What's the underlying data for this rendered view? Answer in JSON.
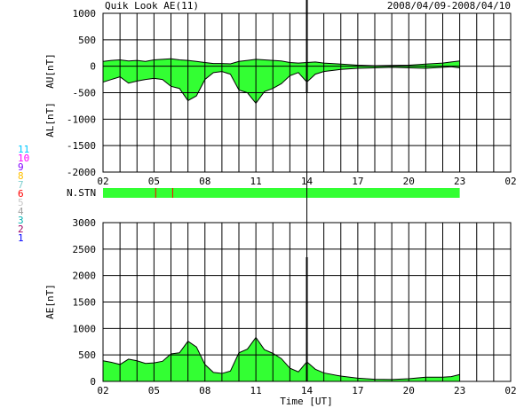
{
  "header": {
    "title": "Quik Look AE(11)",
    "date_range": "2008/04/09-2008/04/10"
  },
  "colors": {
    "fill": "#33ff33",
    "station_bar": "#33ff33",
    "grid": "#000000",
    "trace": "#000000",
    "station_marker": "#ff0000"
  },
  "station_count": {
    "label": "N.STN",
    "marker_hours": [
      5.1,
      6.1
    ],
    "legend": [
      {
        "n": "11",
        "color": "#00c8ff"
      },
      {
        "n": "10",
        "color": "#ff00ff"
      },
      {
        "n": "9",
        "color": "#8000ff"
      },
      {
        "n": "8",
        "color": "#ffc000"
      },
      {
        "n": "7",
        "color": "#7fcfcf"
      },
      {
        "n": "6",
        "color": "#ff0000"
      },
      {
        "n": "5",
        "color": "#c8c8c8"
      },
      {
        "n": "4",
        "color": "#a0a0a0"
      },
      {
        "n": "3",
        "color": "#00b0b0"
      },
      {
        "n": "2",
        "color": "#a00060"
      },
      {
        "n": "1",
        "color": "#0000ff"
      }
    ]
  },
  "chart_data": [
    {
      "type": "area",
      "ylabel_upper": "AU[nT]",
      "ylabel_lower": "AL[nT]",
      "ylim": [
        -2000,
        1000
      ],
      "yticks": [
        1000,
        500,
        0,
        -500,
        -1000,
        -1500,
        -2000
      ],
      "xlim": [
        2,
        26
      ],
      "xticks": [
        "02",
        "05",
        "08",
        "11",
        "14",
        "17",
        "20",
        "23",
        "02"
      ],
      "data_end_hour": 23,
      "current_time_hour": 14,
      "grid": true,
      "series": [
        {
          "name": "AU",
          "x": [
            2,
            2.5,
            3,
            3.5,
            4,
            4.5,
            5,
            5.5,
            6,
            6.5,
            7,
            7.5,
            8,
            8.5,
            9,
            9.5,
            10,
            10.5,
            11,
            11.5,
            12,
            12.5,
            13,
            13.5,
            14,
            14.5,
            15,
            16,
            17,
            18,
            19,
            20,
            21,
            22,
            22.5,
            23
          ],
          "values": [
            90,
            110,
            120,
            100,
            110,
            90,
            120,
            130,
            140,
            120,
            110,
            90,
            70,
            50,
            50,
            45,
            90,
            110,
            130,
            120,
            110,
            100,
            70,
            60,
            70,
            80,
            60,
            40,
            20,
            10,
            15,
            20,
            40,
            60,
            80,
            100
          ]
        },
        {
          "name": "AL",
          "x": [
            2,
            2.5,
            3,
            3.5,
            4,
            4.5,
            5,
            5.5,
            6,
            6.5,
            7,
            7.5,
            8,
            8.5,
            9,
            9.5,
            10,
            10.5,
            11,
            11.5,
            12,
            12.5,
            13,
            13.5,
            14,
            14.5,
            15,
            16,
            17,
            18,
            19,
            20,
            21,
            22,
            22.5,
            23
          ],
          "values": [
            -300,
            -250,
            -200,
            -320,
            -280,
            -250,
            -230,
            -250,
            -380,
            -420,
            -650,
            -560,
            -250,
            -120,
            -100,
            -150,
            -450,
            -500,
            -700,
            -480,
            -420,
            -330,
            -180,
            -120,
            -300,
            -150,
            -100,
            -60,
            -40,
            -30,
            -20,
            -30,
            -40,
            -20,
            -10,
            -30
          ]
        }
      ]
    },
    {
      "type": "area",
      "ylabel": "AE[nT]",
      "xlabel": "Time [UT]",
      "ylim": [
        0,
        3000
      ],
      "yticks": [
        3000,
        2500,
        2000,
        1500,
        1000,
        500,
        0
      ],
      "xlim": [
        2,
        26
      ],
      "xticks": [
        "02",
        "05",
        "08",
        "11",
        "14",
        "17",
        "20",
        "23",
        "02"
      ],
      "data_end_hour": 23,
      "current_time_hour": 14,
      "grid": true,
      "series": [
        {
          "name": "AE",
          "x": [
            2,
            2.5,
            3,
            3.5,
            4,
            4.5,
            5,
            5.5,
            6,
            6.5,
            7,
            7.5,
            8,
            8.5,
            9,
            9.5,
            10,
            10.5,
            11,
            11.5,
            12,
            12.5,
            13,
            13.5,
            14,
            14.5,
            15,
            16,
            17,
            18,
            19,
            20,
            21,
            22,
            22.5,
            23
          ],
          "values": [
            390,
            360,
            320,
            420,
            390,
            340,
            350,
            380,
            520,
            540,
            760,
            650,
            320,
            170,
            150,
            195,
            540,
            610,
            830,
            600,
            530,
            430,
            250,
            180,
            370,
            230,
            160,
            100,
            60,
            40,
            35,
            50,
            80,
            80,
            90,
            130
          ]
        }
      ]
    }
  ]
}
